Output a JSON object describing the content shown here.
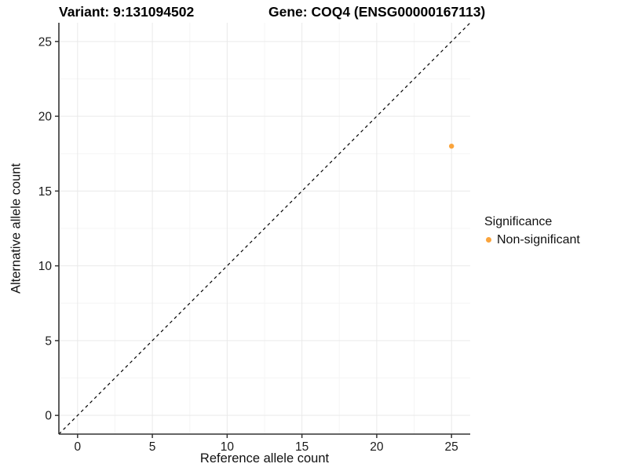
{
  "titles": {
    "variant": "Variant: 9:131094502",
    "gene": "Gene: COQ4 (ENSG00000167113)"
  },
  "chart_data": {
    "type": "scatter",
    "title_left": "Variant: 9:131094502",
    "title_right": "Gene: COQ4 (ENSG00000167113)",
    "xlabel": "Reference allele count",
    "ylabel": "Alternative allele count",
    "xlim": [
      -1.25,
      26.25
    ],
    "ylim": [
      -1.25,
      26.25
    ],
    "xticks": [
      0,
      5,
      10,
      15,
      20,
      25
    ],
    "yticks": [
      0,
      5,
      10,
      15,
      20,
      25
    ],
    "x_minor": [
      2.5,
      7.5,
      12.5,
      17.5,
      22.5
    ],
    "y_minor": [
      2.5,
      7.5,
      12.5,
      17.5,
      22.5
    ],
    "grid": true,
    "points": [
      {
        "x": 25,
        "y": 18,
        "series": "Non-significant"
      }
    ],
    "identity_line": {
      "style": "dashed",
      "from": -1.25,
      "to": 26.25
    },
    "legend": {
      "title": "Significance",
      "position": "right",
      "items": [
        {
          "label": "Non-significant",
          "color": "#FAA43C"
        }
      ]
    },
    "colors": {
      "point": "#FAA43C",
      "grid_major": "#E9E9E9",
      "grid_minor": "#F5F5F5",
      "axis": "#333333",
      "identity": "#000000",
      "tick_label": "#1A1A1A",
      "background": "#FFFFFF"
    }
  }
}
